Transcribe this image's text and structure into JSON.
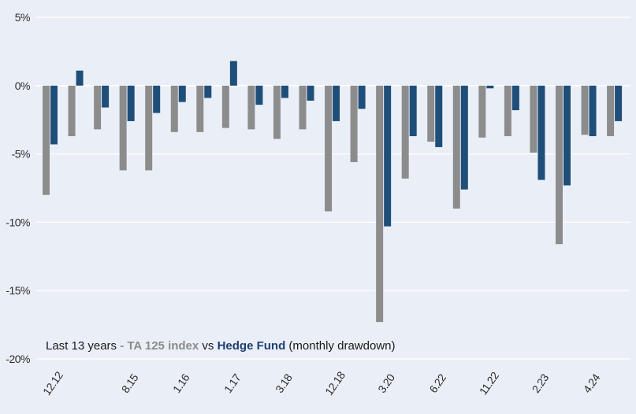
{
  "caption": {
    "prefix": "Last 13 years ",
    "ta_part": "- TA 125 index",
    "vs": " vs ",
    "hf_part": "Hedge Fund",
    "suffix": " (monthly drawdown)"
  },
  "colors": {
    "background": "#eaeff7",
    "ta125": "#8c8c8c",
    "hedge_fund": "#1f4e79",
    "gridline": "#ffffff"
  },
  "chart_data": {
    "type": "bar",
    "title": "",
    "xlabel": "",
    "ylabel": "",
    "ylim": [
      -20,
      5
    ],
    "yticks": [
      "5%",
      "0%",
      "-5%",
      "-10%",
      "-15%",
      "-20%"
    ],
    "ytick_values": [
      5,
      0,
      -5,
      -10,
      -15,
      -20
    ],
    "grid": true,
    "x_tick_labels": [
      {
        "label": "12.12",
        "group": 0
      },
      {
        "label": "8.15",
        "group": 3
      },
      {
        "label": "1.16",
        "group": 5
      },
      {
        "label": "1.17",
        "group": 7
      },
      {
        "label": "3.18",
        "group": 9
      },
      {
        "label": "12.18",
        "group": 11
      },
      {
        "label": "3.20",
        "group": 13
      },
      {
        "label": "6.22",
        "group": 15
      },
      {
        "label": "11.22",
        "group": 17
      },
      {
        "label": "2.23",
        "group": 19
      },
      {
        "label": "4.24",
        "group": 21
      }
    ],
    "series": [
      {
        "key": "ta125",
        "values": [
          -8.0,
          -3.7,
          -3.2,
          -6.2,
          -6.2,
          -3.4,
          -3.4,
          -3.1,
          -3.2,
          -3.9,
          -3.2,
          -9.2,
          -5.6,
          -17.3,
          -6.8,
          -4.1,
          -9.0,
          -3.8,
          -3.7,
          -4.9,
          -11.6,
          -3.6,
          -3.7
        ]
      },
      {
        "key": "hedge_fund",
        "values": [
          -4.3,
          1.1,
          -1.6,
          -2.6,
          -2.0,
          -1.2,
          -0.9,
          1.8,
          -1.4,
          -0.9,
          -1.1,
          -2.6,
          -1.7,
          -10.3,
          -3.7,
          -4.5,
          -7.6,
          -0.2,
          -1.8,
          -6.9,
          -7.3,
          -3.7,
          -2.6
        ]
      }
    ]
  }
}
